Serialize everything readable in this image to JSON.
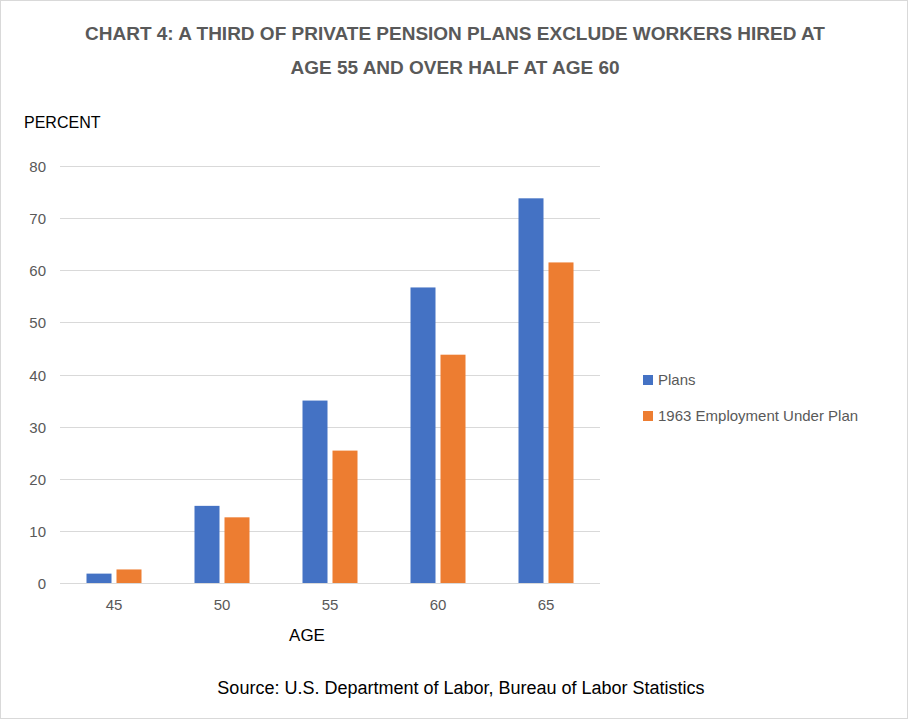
{
  "chart_data": {
    "type": "bar",
    "title": "CHART 4: A THIRD OF PRIVATE PENSION PLANS EXCLUDE WORKERS HIRED AT AGE 55 AND OVER HALF AT AGE 60",
    "x_label": "AGE",
    "y_label": "PERCENT",
    "source": "Source: U.S. Department of Labor, Bureau of Labor Statistics",
    "categories": [
      "45",
      "50",
      "55",
      "60",
      "65"
    ],
    "series": [
      {
        "name": "Plans",
        "color": "#4472c4",
        "values": [
          1.8,
          14.8,
          35,
          56.7,
          73.8
        ]
      },
      {
        "name": "1963 Employment Under Plan",
        "color": "#ed7d31",
        "values": [
          2.6,
          12.6,
          25.4,
          43.8,
          61.5
        ]
      }
    ],
    "ylim": [
      0,
      80
    ],
    "yticks": [
      0,
      10,
      20,
      30,
      40,
      50,
      60,
      70,
      80
    ],
    "grid": true,
    "legend": "right"
  }
}
